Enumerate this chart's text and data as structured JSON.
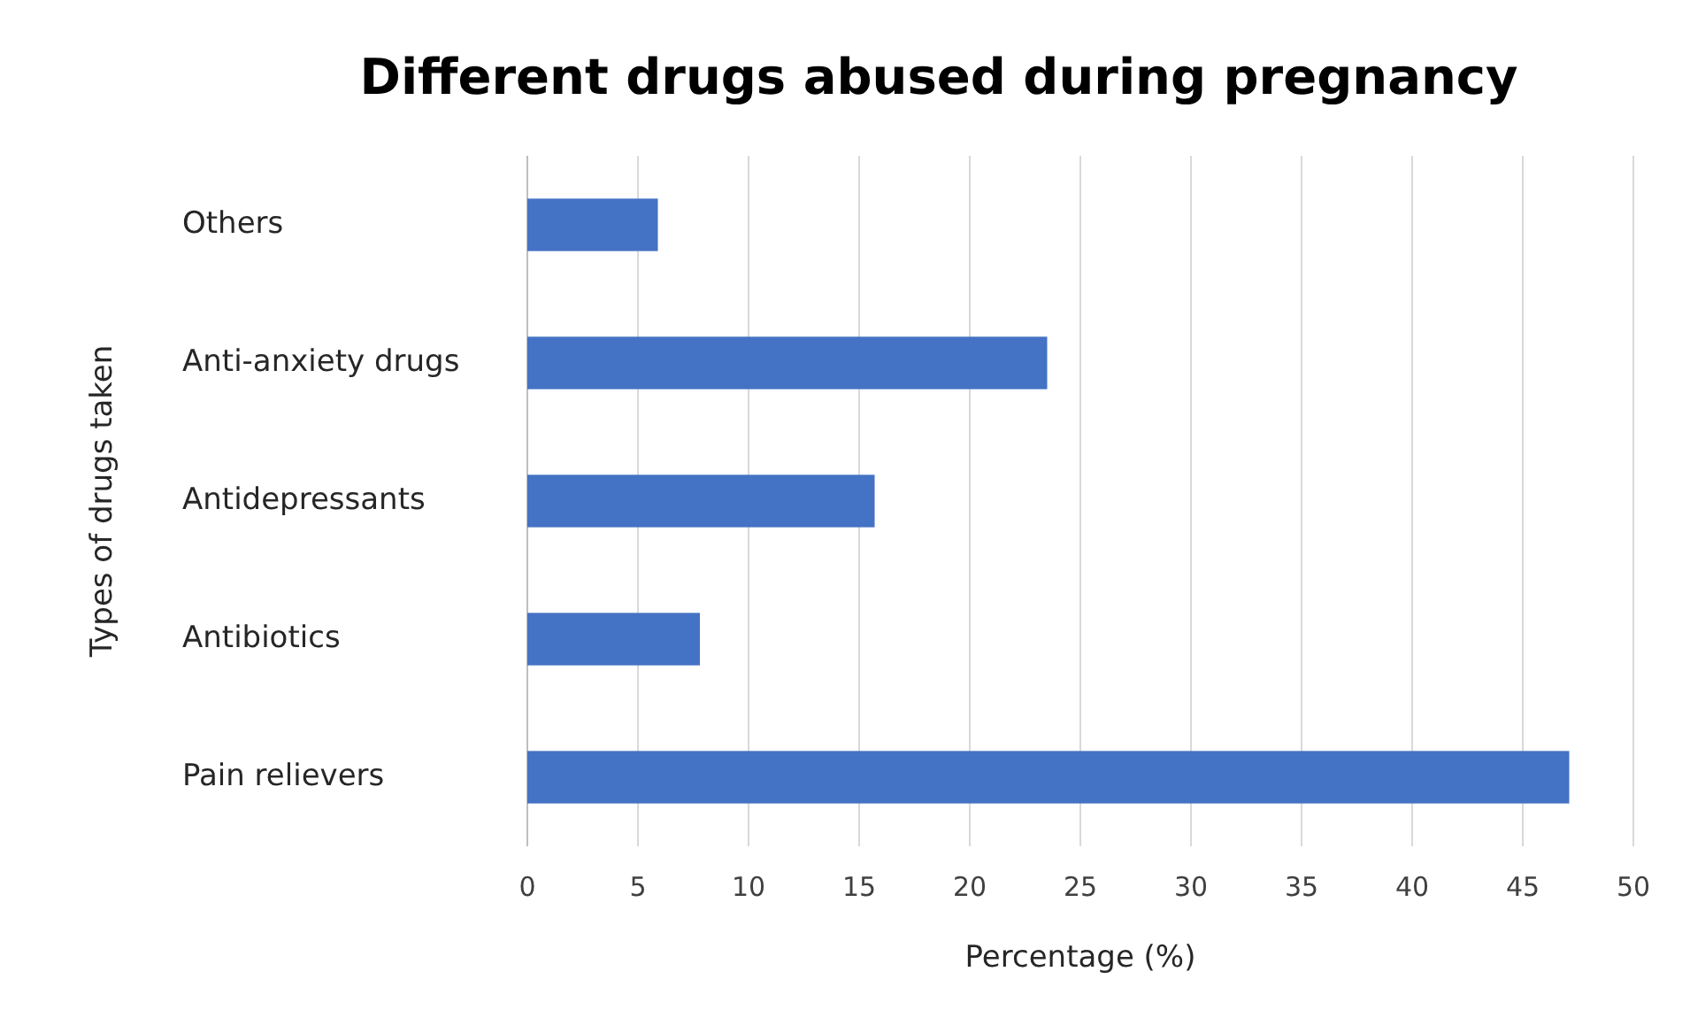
{
  "chart_data": {
    "type": "bar",
    "orientation": "horizontal",
    "title": "Different drugs abused during pregnancy",
    "xlabel": "Percentage (%)",
    "ylabel": "Types of drugs taken",
    "categories": [
      "Others",
      "Anti-anxiety drugs",
      "Antidepressants",
      "Antibiotics",
      "Pain relievers"
    ],
    "values": [
      5.9,
      23.5,
      15.7,
      7.8,
      47.1
    ],
    "color": "#4472c4",
    "xlim": [
      0,
      50
    ],
    "xticks": [
      0,
      5,
      10,
      15,
      20,
      25,
      30,
      35,
      40,
      45,
      50
    ],
    "grid": "x"
  }
}
